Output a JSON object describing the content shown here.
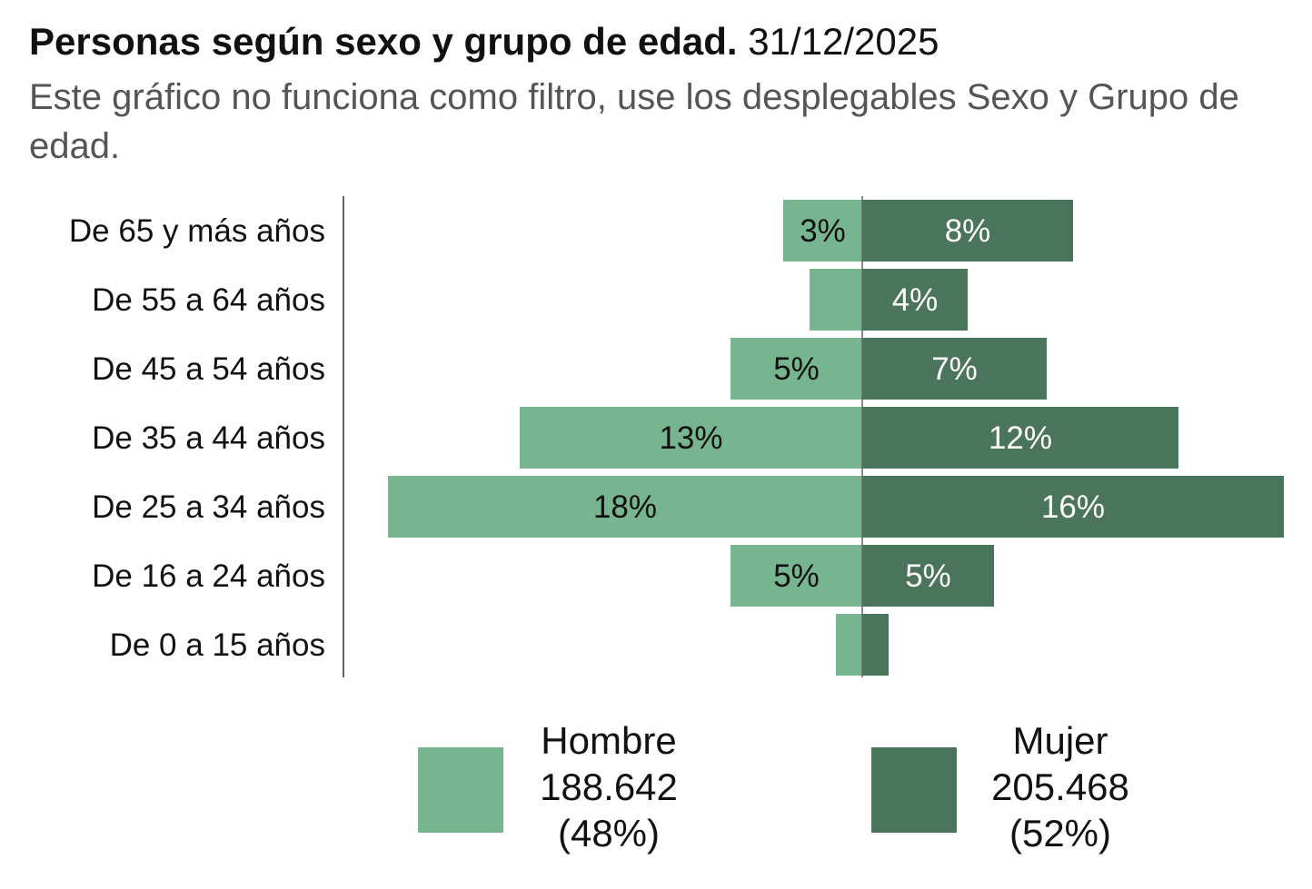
{
  "header": {
    "title_bold": "Personas según sexo y grupo de edad.",
    "title_date": "31/12/2025",
    "subtitle": "Este gráfico no funciona como filtro, use los desplegables Sexo y Grupo de edad."
  },
  "colors": {
    "hombre": "#76b590",
    "mujer": "#4a745b",
    "axis": "#666666",
    "label_on_light": "#111111",
    "label_on_dark": "#ffffff"
  },
  "legend": [
    {
      "name": "Hombre",
      "total": "188.642",
      "share": "(48%)"
    },
    {
      "name": "Mujer",
      "total": "205.468",
      "share": "(52%)"
    }
  ],
  "chart_data": {
    "type": "bar",
    "orientation": "horizontal-diverging (population pyramid)",
    "title": "Personas según sexo y grupo de edad. 31/12/2025",
    "xlabel": "",
    "ylabel": "",
    "unit": "%",
    "categories": [
      "De 65 y más años",
      "De 55 a 64 años",
      "De 45 a 54 años",
      "De 35 a 44 años",
      "De 25 a 34 años",
      "De 16 a 24 años",
      "De 0 a 15 años"
    ],
    "series": [
      {
        "name": "Hombre",
        "side": "left",
        "values": [
          3,
          2,
          5,
          13,
          18,
          5,
          1
        ],
        "labels": [
          "3%",
          "",
          "5%",
          "13%",
          "18%",
          "5%",
          ""
        ]
      },
      {
        "name": "Mujer",
        "side": "right",
        "values": [
          8,
          4,
          7,
          12,
          16,
          5,
          1
        ],
        "labels": [
          "8%",
          "4%",
          "7%",
          "12%",
          "16%",
          "5%",
          ""
        ]
      }
    ],
    "legend_position": "bottom",
    "grid": false
  }
}
